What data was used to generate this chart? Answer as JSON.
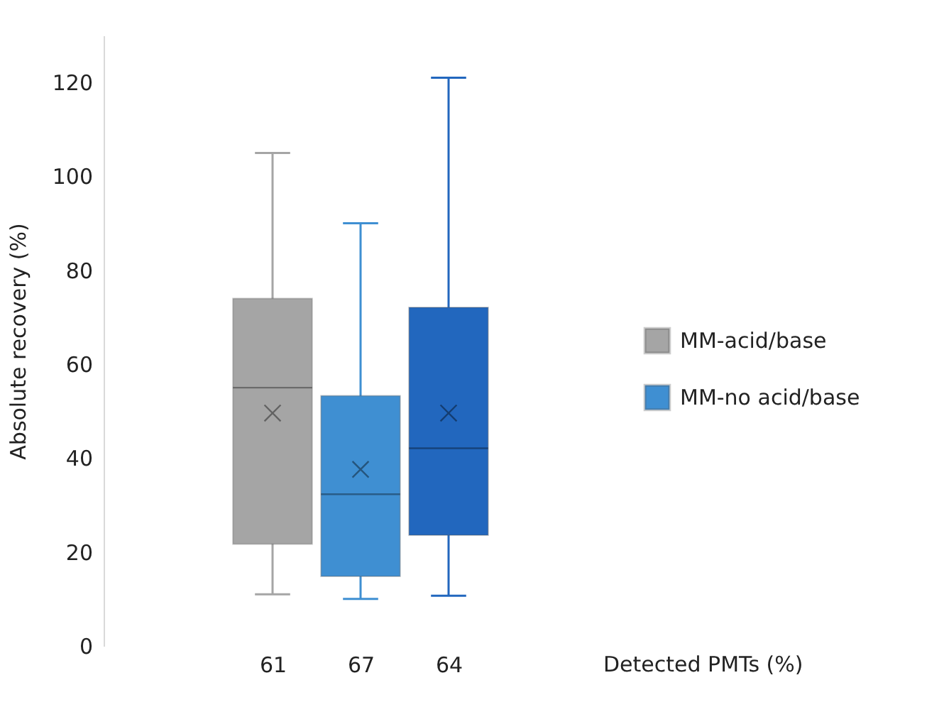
{
  "chart_data": {
    "type": "box",
    "ylabel": "Absolute recovery (%)",
    "annotations": [
      "Detected PMTs (%)"
    ],
    "categories": [
      "61",
      "67",
      "64"
    ],
    "series": [
      {
        "name": "MM-acid/base",
        "color": "#a5a5a5",
        "boxes": [
          {
            "low": 11,
            "q1": 21.7,
            "median": 55,
            "q3": 74,
            "high": 105,
            "mean": 49.6
          },
          null,
          null
        ]
      },
      {
        "name": "MM-no acid/base",
        "color": "#3f8fd2",
        "boxes": [
          null,
          {
            "low": 10,
            "q1": 14.8,
            "median": 32.3,
            "q3": 53.3,
            "high": 90,
            "mean": 37.6
          },
          null
        ]
      },
      {
        "color": "#2267be",
        "boxes": [
          null,
          null,
          {
            "low": 10.7,
            "q1": 23.6,
            "median": 42.1,
            "q3": 72.1,
            "high": 121,
            "mean": 49.6
          }
        ]
      }
    ],
    "ylim": [
      0,
      130
    ],
    "yticks": [
      0,
      20,
      40,
      60,
      80,
      100,
      120
    ],
    "legend": "right"
  }
}
